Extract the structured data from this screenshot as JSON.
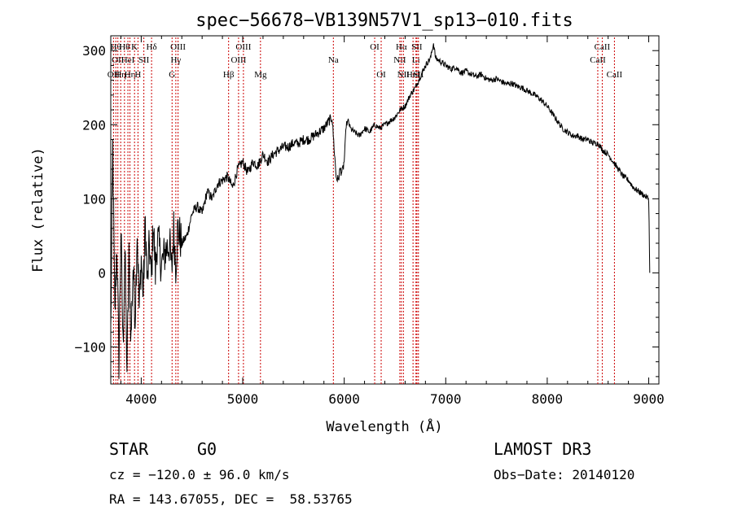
{
  "chart_data": {
    "type": "line",
    "title": "spec−56678−VB139N57V1_sp13−010.fits",
    "xlabel": "Wavelength (Å)",
    "ylabel": "Flux (relative)",
    "xlim": [
      3700,
      9100
    ],
    "ylim": [
      -150,
      320
    ],
    "xticks": [
      4000,
      5000,
      6000,
      7000,
      8000,
      9000
    ],
    "yticks": [
      -100,
      0,
      100,
      200,
      300
    ],
    "ytick_labels": [
      "−100",
      "0",
      "100",
      "200",
      "300"
    ],
    "line_color": "#000000",
    "marker_color": "#cc0000",
    "series": [
      {
        "points": [
          [
            3700,
            -80
          ],
          [
            3720,
            170
          ],
          [
            3740,
            -60
          ],
          [
            3760,
            40
          ],
          [
            3780,
            -120
          ],
          [
            3800,
            60
          ],
          [
            3820,
            -100
          ],
          [
            3840,
            30
          ],
          [
            3860,
            -130
          ],
          [
            3880,
            20
          ],
          [
            3900,
            -90
          ],
          [
            3920,
            10
          ],
          [
            3940,
            -60
          ],
          [
            3960,
            60
          ],
          [
            3980,
            -50
          ],
          [
            4000,
            20
          ],
          [
            4020,
            -30
          ],
          [
            4040,
            70
          ],
          [
            4060,
            -20
          ],
          [
            4080,
            40
          ],
          [
            4100,
            -10
          ],
          [
            4120,
            70
          ],
          [
            4140,
            0
          ],
          [
            4160,
            50
          ],
          [
            4200,
            10
          ],
          [
            4240,
            30
          ],
          [
            4280,
            40
          ],
          [
            4300,
            0
          ],
          [
            4320,
            60
          ],
          [
            4340,
            10
          ],
          [
            4360,
            60
          ],
          [
            4400,
            40
          ],
          [
            4450,
            50
          ],
          [
            4500,
            80
          ],
          [
            4550,
            90
          ],
          [
            4600,
            80
          ],
          [
            4650,
            110
          ],
          [
            4700,
            100
          ],
          [
            4750,
            120
          ],
          [
            4800,
            125
          ],
          [
            4850,
            130
          ],
          [
            4900,
            115
          ],
          [
            4950,
            140
          ],
          [
            5000,
            150
          ],
          [
            5050,
            135
          ],
          [
            5100,
            150
          ],
          [
            5150,
            145
          ],
          [
            5200,
            160
          ],
          [
            5250,
            150
          ],
          [
            5300,
            160
          ],
          [
            5350,
            165
          ],
          [
            5400,
            170
          ],
          [
            5450,
            170
          ],
          [
            5500,
            175
          ],
          [
            5550,
            175
          ],
          [
            5600,
            180
          ],
          [
            5650,
            180
          ],
          [
            5700,
            185
          ],
          [
            5750,
            190
          ],
          [
            5800,
            195
          ],
          [
            5850,
            205
          ],
          [
            5880,
            210
          ],
          [
            5900,
            170
          ],
          [
            5920,
            130
          ],
          [
            5940,
            125
          ],
          [
            5960,
            140
          ],
          [
            5980,
            135
          ],
          [
            6000,
            150
          ],
          [
            6020,
            200
          ],
          [
            6040,
            205
          ],
          [
            6060,
            195
          ],
          [
            6100,
            190
          ],
          [
            6150,
            185
          ],
          [
            6200,
            195
          ],
          [
            6250,
            190
          ],
          [
            6300,
            200
          ],
          [
            6350,
            195
          ],
          [
            6400,
            200
          ],
          [
            6450,
            205
          ],
          [
            6500,
            210
          ],
          [
            6550,
            220
          ],
          [
            6600,
            225
          ],
          [
            6650,
            240
          ],
          [
            6700,
            250
          ],
          [
            6750,
            265
          ],
          [
            6800,
            280
          ],
          [
            6850,
            290
          ],
          [
            6880,
            310
          ],
          [
            6900,
            290
          ],
          [
            6950,
            285
          ],
          [
            7000,
            280
          ],
          [
            7050,
            275
          ],
          [
            7100,
            278
          ],
          [
            7150,
            270
          ],
          [
            7200,
            272
          ],
          [
            7250,
            268
          ],
          [
            7300,
            265
          ],
          [
            7350,
            268
          ],
          [
            7400,
            262
          ],
          [
            7450,
            260
          ],
          [
            7500,
            262
          ],
          [
            7550,
            258
          ],
          [
            7600,
            255
          ],
          [
            7650,
            256
          ],
          [
            7700,
            252
          ],
          [
            7750,
            250
          ],
          [
            7800,
            246
          ],
          [
            7850,
            242
          ],
          [
            7900,
            238
          ],
          [
            7950,
            232
          ],
          [
            8000,
            225
          ],
          [
            8050,
            215
          ],
          [
            8100,
            205
          ],
          [
            8150,
            195
          ],
          [
            8200,
            190
          ],
          [
            8250,
            185
          ],
          [
            8300,
            185
          ],
          [
            8350,
            180
          ],
          [
            8400,
            180
          ],
          [
            8450,
            175
          ],
          [
            8500,
            175
          ],
          [
            8550,
            165
          ],
          [
            8600,
            160
          ],
          [
            8650,
            150
          ],
          [
            8700,
            140
          ],
          [
            8750,
            130
          ],
          [
            8800,
            125
          ],
          [
            8850,
            115
          ],
          [
            8900,
            110
          ],
          [
            8950,
            105
          ],
          [
            9000,
            100
          ],
          [
            9010,
            0
          ]
        ]
      }
    ],
    "line_markers": [
      {
        "x": 3727,
        "label": "OII",
        "row": 2
      },
      {
        "x": 3750,
        "label": "Hθ",
        "row": 0
      },
      {
        "x": 3770,
        "label": "OII",
        "row": 1
      },
      {
        "x": 3798,
        "label": "Hη",
        "row": 2
      },
      {
        "x": 3835,
        "label": "Hθ",
        "row": 0
      },
      {
        "x": 3869,
        "label": "HeI",
        "row": 1
      },
      {
        "x": 3889,
        "label": "Hη",
        "row": 2
      },
      {
        "x": 3934,
        "label": "K",
        "row": 0
      },
      {
        "x": 3968,
        "label": "H",
        "row": 2
      },
      {
        "x": 4026,
        "label": "SII",
        "row": 1
      },
      {
        "x": 4102,
        "label": "Hδ",
        "row": 0
      },
      {
        "x": 4304,
        "label": "G",
        "row": 2
      },
      {
        "x": 4341,
        "label": "Hγ",
        "row": 1
      },
      {
        "x": 4363,
        "label": "OIII",
        "row": 0
      },
      {
        "x": 4861,
        "label": "Hβ",
        "row": 2
      },
      {
        "x": 4959,
        "label": "OIII",
        "row": 1
      },
      {
        "x": 5007,
        "label": "OIII",
        "row": 0
      },
      {
        "x": 5175,
        "label": "Mg",
        "row": 2
      },
      {
        "x": 5893,
        "label": "Na",
        "row": 1
      },
      {
        "x": 6300,
        "label": "OI",
        "row": 0
      },
      {
        "x": 6364,
        "label": "OI",
        "row": 2
      },
      {
        "x": 6548,
        "label": "NII",
        "row": 1
      },
      {
        "x": 6563,
        "label": "Hα",
        "row": 0
      },
      {
        "x": 6583,
        "label": "NII",
        "row": 2
      },
      {
        "x": 6678,
        "label": "HeI",
        "row": 2
      },
      {
        "x": 6707,
        "label": "Li",
        "row": 1
      },
      {
        "x": 6716,
        "label": "SII",
        "row": 0
      },
      {
        "x": 6731,
        "label": "SII",
        "row": 2
      },
      {
        "x": 8498,
        "label": "CaII",
        "row": 1
      },
      {
        "x": 8542,
        "label": "CaII",
        "row": 0
      },
      {
        "x": 8662,
        "label": "CaII",
        "row": 2
      }
    ]
  },
  "info": {
    "object_class": "STAR",
    "subclass": "G0",
    "survey": "LAMOST DR3",
    "redshift": "cz = −120.0 ± 96.0 km/s",
    "obs_date": "Obs−Date: 20140120",
    "coordinates": "RA = 143.67055, DEC =  58.53765"
  }
}
